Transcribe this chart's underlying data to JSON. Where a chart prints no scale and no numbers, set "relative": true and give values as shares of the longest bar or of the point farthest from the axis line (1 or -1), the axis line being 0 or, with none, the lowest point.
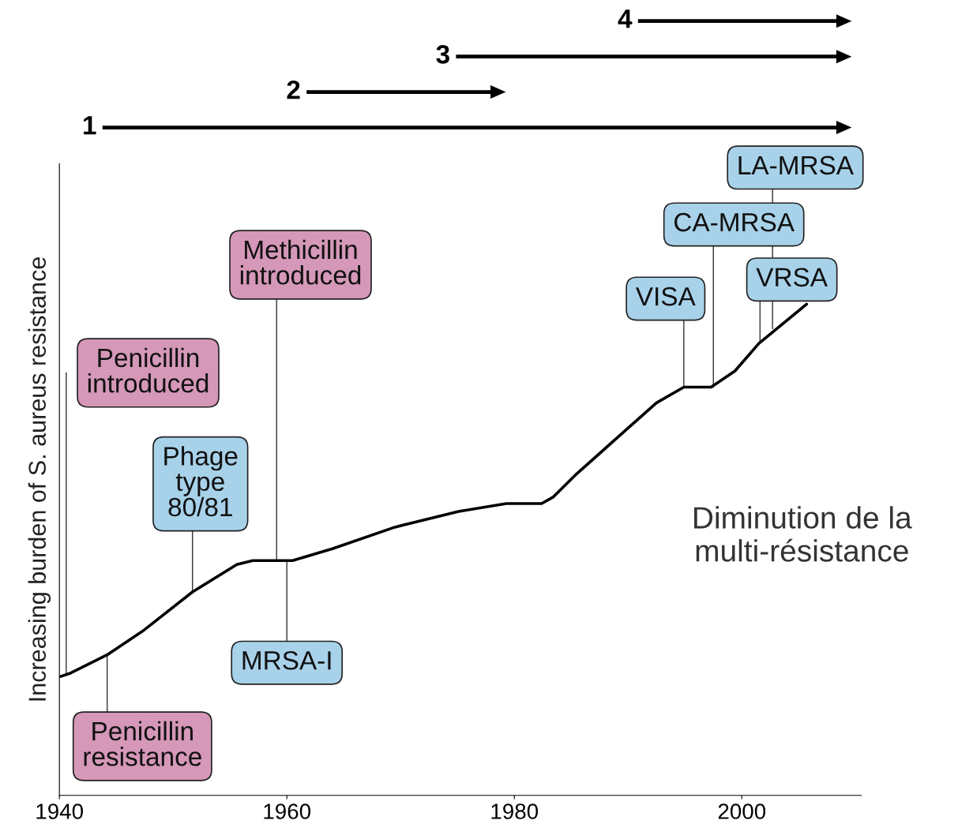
{
  "chart_data": {
    "type": "line",
    "relative": true,
    "ylabel": "Increasing burden of S. aureus resistance",
    "xlim": [
      1940,
      2010.5
    ],
    "xticks": [
      1940,
      1960,
      1980,
      2000
    ],
    "grid": false,
    "legend": false,
    "marker": "none",
    "line_style": "solid",
    "series": [
      {
        "color": "#000000",
        "x": [
          1940.1,
          1941.0,
          1944.2,
          1947.3,
          1951.7,
          1955.6,
          1957.0,
          1960.5,
          1964.0,
          1969.5,
          1975.1,
          1979.3,
          1982.4,
          1983.4,
          1985.5,
          1989.0,
          1992.5,
          1994.9,
          1997.3,
          1999.4,
          2001.5,
          2005.7
        ],
        "values": [
          0.242,
          0.249,
          0.286,
          0.334,
          0.414,
          0.47,
          0.478,
          0.478,
          0.502,
          0.546,
          0.578,
          0.594,
          0.594,
          0.607,
          0.655,
          0.727,
          0.799,
          0.831,
          0.831,
          0.864,
          0.92,
          1.0
        ]
      }
    ],
    "annotations": [
      {
        "text": "Penicillin\nintroduced",
        "x": 1940.6,
        "y": 0.246
      },
      {
        "text": "Penicillin\nresistance",
        "x": 1944.2,
        "y": 0.286
      },
      {
        "text": "Phage\ntype\n80/81",
        "x": 1951.7,
        "y": 0.414
      },
      {
        "text": "Methicillin\nintroduced",
        "x": 1959.1,
        "y": 0.478
      },
      {
        "text": "MRSA-I",
        "x": 1960.0,
        "y": 0.478
      },
      {
        "text": "VISA",
        "x": 1994.9,
        "y": 0.831
      },
      {
        "text": "CA-MRSA",
        "x": 1997.5,
        "y": 0.831
      },
      {
        "text": "VRSA",
        "x": 2001.6,
        "y": 0.92
      },
      {
        "text": "LA-MRSA",
        "x": 2002.7,
        "y": 0.95
      },
      "Diminution de la\nmulti-résistance",
      "1",
      "2",
      "3",
      "4"
    ]
  }
}
